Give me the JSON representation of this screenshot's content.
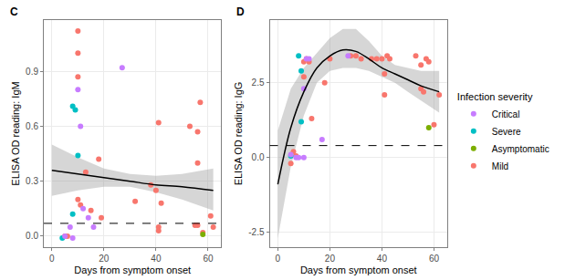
{
  "chart_data": [
    {
      "type": "scatter",
      "title": "C",
      "x_label": "Days from symptom onset",
      "y_label": "ELISA OD reading: IgM",
      "xlim": [
        -3.1,
        65.1
      ],
      "xticks": [
        0,
        20,
        40,
        60
      ],
      "ylim": [
        -0.06,
        1.18
      ],
      "yticks": [
        {
          "value": 0,
          "label": "0.0"
        },
        0.3,
        0.6,
        0.9
      ],
      "grid": true,
      "series": [
        {
          "name": "Mild",
          "color": "#F8766D",
          "x": [
            10,
            10,
            10,
            13,
            10,
            11,
            15,
            18,
            19,
            32,
            38,
            40,
            41,
            41,
            41,
            42,
            53,
            56,
            57,
            56,
            56,
            58,
            61,
            62,
            55,
            5,
            6
          ],
          "y": [
            1.12,
            1.0,
            0.87,
            0.35,
            0.2,
            0.17,
            0.14,
            0.42,
            0.1,
            0.19,
            0.28,
            0.25,
            0.62,
            0.05,
            0.03,
            0.18,
            0.6,
            0.57,
            0.73,
            0.4,
            0.06,
            0.02,
            0.11,
            0.05,
            0.06,
            0.0,
            0.0
          ]
        },
        {
          "name": "Asymptomatic",
          "color": "#7CAE00",
          "x": [
            58
          ],
          "y": [
            0.01
          ]
        },
        {
          "name": "Severe",
          "color": "#00BFC4",
          "x": [
            8,
            9,
            10,
            8,
            4
          ],
          "y": [
            0.71,
            0.69,
            0.44,
            0.12,
            -0.01
          ]
        },
        {
          "name": "Critical",
          "color": "#C77CFF",
          "x": [
            10,
            11,
            27,
            14,
            12,
            7,
            8,
            5,
            16
          ],
          "y": [
            0.8,
            0.6,
            0.92,
            0.1,
            0.15,
            0.05,
            -0.01,
            0.0,
            0.05
          ]
        }
      ],
      "fit": {
        "x": [
          0,
          10,
          20,
          30,
          40,
          50,
          62
        ],
        "y": [
          0.36,
          0.34,
          0.32,
          0.3,
          0.28,
          0.27,
          0.25
        ],
        "lower": [
          0.22,
          0.25,
          0.27,
          0.27,
          0.24,
          0.2,
          0.14
        ],
        "upper": [
          0.5,
          0.43,
          0.37,
          0.34,
          0.33,
          0.34,
          0.37
        ],
        "color": "#000000"
      },
      "threshold": 0.07
    },
    {
      "type": "scatter",
      "title": "D",
      "x_label": "Days from symptom onset",
      "y_label": "ELISA OD reading: IgG",
      "xlim": [
        -3.1,
        65.1
      ],
      "xticks": [
        0,
        20,
        40,
        60
      ],
      "ylim": [
        -3.0,
        4.6
      ],
      "yticks": [
        -2.5,
        {
          "value": 0,
          "label": "0.0"
        },
        2.5
      ],
      "grid": true,
      "legend": "right",
      "legend_title": "Infection severity",
      "series": [
        {
          "name": "Mild",
          "color": "#F8766D",
          "x": [
            5,
            6,
            7,
            10,
            10,
            11,
            12,
            13,
            18,
            20,
            28,
            30,
            32,
            36,
            38,
            40,
            41,
            41,
            42,
            43,
            53,
            55,
            55,
            56,
            57,
            58,
            60,
            62
          ],
          "y": [
            -0.2,
            0.2,
            0.05,
            2.7,
            3.2,
            3.3,
            3.2,
            1.3,
            2.5,
            3.3,
            3.4,
            3.4,
            3.3,
            3.3,
            3.3,
            3.3,
            2.8,
            2.1,
            3.4,
            3.3,
            3.4,
            2.3,
            3.1,
            2.2,
            3.3,
            3.2,
            1.1,
            2.1
          ]
        },
        {
          "name": "Asymptomatic",
          "color": "#7CAE00",
          "x": [
            58
          ],
          "y": [
            1.0
          ]
        },
        {
          "name": "Severe",
          "color": "#00BFC4",
          "x": [
            8,
            9,
            9,
            5
          ],
          "y": [
            3.4,
            2.9,
            1.2,
            0.05
          ]
        },
        {
          "name": "Critical",
          "color": "#C77CFF",
          "x": [
            5,
            7,
            8,
            10,
            11,
            17,
            27,
            10,
            12
          ],
          "y": [
            0.1,
            0.0,
            0.0,
            2.3,
            3.3,
            0.6,
            3.4,
            0.0,
            3.3
          ]
        }
      ],
      "fit": {
        "x": [
          0,
          5,
          10,
          15,
          20,
          25,
          30,
          35,
          40,
          45,
          50,
          55,
          62
        ],
        "y": [
          -0.9,
          1.0,
          2.2,
          3.0,
          3.4,
          3.6,
          3.55,
          3.3,
          3.0,
          2.8,
          2.6,
          2.4,
          2.2
        ],
        "lower": [
          -2.7,
          -0.3,
          1.4,
          2.5,
          2.9,
          3.0,
          3.0,
          2.9,
          2.7,
          2.5,
          2.2,
          1.9,
          1.5
        ],
        "upper": [
          0.9,
          2.3,
          3.0,
          3.5,
          4.0,
          4.3,
          4.3,
          3.9,
          3.4,
          3.1,
          3.0,
          2.9,
          2.9
        ],
        "color": "#000000"
      },
      "threshold": 0.4
    }
  ]
}
